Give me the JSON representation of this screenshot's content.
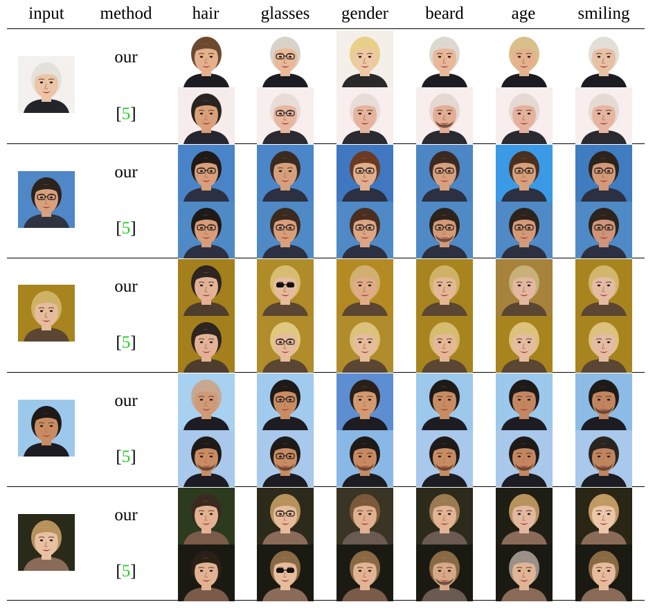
{
  "columns": [
    "input",
    "method",
    "hair",
    "glasses",
    "gender",
    "beard",
    "age",
    "smiling"
  ],
  "method_labels": {
    "ours": "our",
    "citation_number": "5"
  },
  "rows": [
    {
      "input": {
        "bg": "#f4f0ee",
        "skin": "#ecc4a6",
        "hair": "#e3e1dc",
        "shirt": "#23252b"
      },
      "our": [
        {
          "bg": "#ffffff",
          "skin": "#e6b08c",
          "hair": "#6b4a30",
          "shirt": "#1c1c22"
        },
        {
          "bg": "#ffffff",
          "skin": "#e9b998",
          "hair": "#d8d2c8",
          "shirt": "#1c1c22",
          "glasses": "clear"
        },
        {
          "bg": "#f4efe8",
          "skin": "#efc8a6",
          "hair": "#e8cf8a",
          "shirt": "#2a2a2a"
        },
        {
          "bg": "#ffffff",
          "skin": "#e8b898",
          "hair": "#ddd8d0",
          "shirt": "#1c1c22"
        },
        {
          "bg": "#ffffff",
          "skin": "#e5b28e",
          "hair": "#d9c08a",
          "shirt": "#1c1c22"
        },
        {
          "bg": "#ffffff",
          "skin": "#e8c0a4",
          "hair": "#e2ded8",
          "shirt": "#1c1c22"
        }
      ],
      "ref": [
        {
          "bg": "#f6eceb",
          "skin": "#d9a07a",
          "hair": "#2a2420",
          "shirt": "#26272e"
        },
        {
          "bg": "#f7eeed",
          "skin": "#e7b7a0",
          "hair": "#e8dcd8",
          "shirt": "#2a2a30",
          "glasses": "clear"
        },
        {
          "bg": "#f7eeed",
          "skin": "#e6b39c",
          "hair": "#e8dcd8",
          "shirt": "#2a2a30"
        },
        {
          "bg": "#f7eeed",
          "skin": "#e3ad94",
          "hair": "#e4d8d2",
          "shirt": "#2a2a30",
          "beard": true
        },
        {
          "bg": "#f7eeed",
          "skin": "#e4b29c",
          "hair": "#e5d9d3",
          "shirt": "#2a2a30"
        },
        {
          "bg": "#f7eeed",
          "skin": "#e5b5a0",
          "hair": "#e6dad4",
          "shirt": "#2a2a30"
        }
      ]
    },
    {
      "input": {
        "bg": "#4f87c7",
        "skin": "#d9a07e",
        "hair": "#2c231c",
        "shirt": "#303440",
        "glasses": "clear"
      },
      "our": [
        {
          "bg": "#4a84c8",
          "skin": "#d99e7a",
          "hair": "#1e1a18",
          "shirt": "#2c3040",
          "glasses": "clear"
        },
        {
          "bg": "#4a86c8",
          "skin": "#d6a07c",
          "hair": "#3a2a20",
          "shirt": "#2c3040"
        },
        {
          "bg": "#3f78c0",
          "skin": "#e1ae8e",
          "hair": "#6a3a22",
          "shirt": "#2c3040",
          "glasses": "clear"
        },
        {
          "bg": "#4c86c4",
          "skin": "#d9a07e",
          "hair": "#3a2a22",
          "shirt": "#2c3040",
          "glasses": "clear"
        },
        {
          "bg": "#3a9ae6",
          "skin": "#d7a07c",
          "hair": "#4a3020",
          "shirt": "#2c3040",
          "glasses": "clear"
        },
        {
          "bg": "#3f7cc0",
          "skin": "#d49a78",
          "hair": "#2c231c",
          "shirt": "#2c3040",
          "glasses": "clear"
        }
      ],
      "ref": [
        {
          "bg": "#4f8ac6",
          "skin": "#d99c78",
          "hair": "#1e1a18",
          "shirt": "#2c3040",
          "glasses": "clear"
        },
        {
          "bg": "#4f8ac6",
          "skin": "#d99e7a",
          "hair": "#3a2a20",
          "shirt": "#2c3040",
          "glasses": "clear"
        },
        {
          "bg": "#4f8ac6",
          "skin": "#dca584",
          "hair": "#4a2e20",
          "shirt": "#2c3040",
          "glasses": "clear"
        },
        {
          "bg": "#4f8ac6",
          "skin": "#d49a78",
          "hair": "#2c231c",
          "shirt": "#2c3040",
          "glasses": "clear",
          "beard": true
        },
        {
          "bg": "#4f8ac6",
          "skin": "#d49a78",
          "hair": "#2c231c",
          "shirt": "#2c3040",
          "glasses": "clear"
        },
        {
          "bg": "#4f8ac6",
          "skin": "#d09478",
          "hair": "#2c231c",
          "shirt": "#2c3040",
          "glasses": "clear"
        }
      ]
    },
    {
      "input": {
        "bg": "#a8841e",
        "skin": "#e6bc9c",
        "hair": "#cfb266",
        "shirt": "#5a4632"
      },
      "our": [
        {
          "bg": "#a3801c",
          "skin": "#e2b296",
          "hair": "#2e2420",
          "shirt": "#4e3c2c"
        },
        {
          "bg": "#b08c28",
          "skin": "#e6bc9c",
          "hair": "#d8bc72",
          "shirt": "#5a4632",
          "glasses": "dark"
        },
        {
          "bg": "#b48a22",
          "skin": "#e0ac88",
          "hair": "#cfb070",
          "shirt": "#5a4632"
        },
        {
          "bg": "#a8841e",
          "skin": "#e4b896",
          "hair": "#cfb266",
          "shirt": "#5a4632"
        },
        {
          "bg": "#a6823a",
          "skin": "#e2b8a0",
          "hair": "#c8b078",
          "shirt": "#5a4632"
        },
        {
          "bg": "#a8841e",
          "skin": "#e4bca4",
          "hair": "#d2b66c",
          "shirt": "#5a4632"
        }
      ],
      "ref": [
        {
          "bg": "#a3801c",
          "skin": "#e2b296",
          "hair": "#2e2420",
          "shirt": "#4e3c2c"
        },
        {
          "bg": "#b08c2a",
          "skin": "#e6bc9c",
          "hair": "#e0c880",
          "shirt": "#5a4632",
          "glasses": "clear"
        },
        {
          "bg": "#b08c2a",
          "skin": "#e6bc9c",
          "hair": "#dcc27c",
          "shirt": "#5a4632"
        },
        {
          "bg": "#a8841e",
          "skin": "#e4b896",
          "hair": "#d6bc70",
          "shirt": "#5a4632"
        },
        {
          "bg": "#a8841e",
          "skin": "#e6bca0",
          "hair": "#dcc27c",
          "shirt": "#5a4632"
        },
        {
          "bg": "#a8841e",
          "skin": "#e4bca4",
          "hair": "#dcc27c",
          "shirt": "#5a4632"
        }
      ]
    },
    {
      "input": {
        "bg": "#9cc8ec",
        "skin": "#c98c62",
        "hair": "#1e1a18",
        "shirt": "#1c1c22"
      },
      "our": [
        {
          "bg": "#a8d0f0",
          "skin": "#d09a76",
          "hair": "#c8a890",
          "shirt": "#1c1c22"
        },
        {
          "bg": "#a0cbee",
          "skin": "#c98c62",
          "hair": "#1e1a18",
          "shirt": "#1c1c22",
          "glasses": "clear"
        },
        {
          "bg": "#5e8ed2",
          "skin": "#d39a70",
          "hair": "#2a2018",
          "shirt": "#1c1c22"
        },
        {
          "bg": "#9cc8ec",
          "skin": "#c98c62",
          "hair": "#1e1a18",
          "shirt": "#1c1c22"
        },
        {
          "bg": "#9cc8ec",
          "skin": "#c48660",
          "hair": "#1e1a18",
          "shirt": "#1c1c22"
        },
        {
          "bg": "#8cbce6",
          "skin": "#c0845e",
          "hair": "#1e1a18",
          "shirt": "#1c1c22",
          "beard": true
        }
      ],
      "ref": [
        {
          "bg": "#a8c8ec",
          "skin": "#c98c62",
          "hair": "#1e1a18",
          "shirt": "#1c1c22",
          "beard": true
        },
        {
          "bg": "#a8c8ec",
          "skin": "#c98c62",
          "hair": "#1e1a18",
          "shirt": "#1c1c22",
          "glasses": "clear",
          "beard": true
        },
        {
          "bg": "#8ab8e6",
          "skin": "#c88a62",
          "hair": "#1e1a18",
          "shirt": "#1c1c22",
          "beard": true
        },
        {
          "bg": "#a8c8ec",
          "skin": "#c98c62",
          "hair": "#1e1a18",
          "shirt": "#1c1c22",
          "beard": true
        },
        {
          "bg": "#a8c8ec",
          "skin": "#c48660",
          "hair": "#1e1a18",
          "shirt": "#1c1c22",
          "beard": true
        },
        {
          "bg": "#a8c8ec",
          "skin": "#c0845e",
          "hair": "#2a2420",
          "shirt": "#1c1c22",
          "beard": true
        }
      ]
    },
    {
      "input": {
        "bg": "#2a2a1a",
        "skin": "#e8c0a2",
        "hair": "#b8925c",
        "shirt": "#8a6a58"
      },
      "our": [
        {
          "bg": "#2c3a1e",
          "skin": "#e2b292",
          "hair": "#3a2a20",
          "shirt": "#7a5a48"
        },
        {
          "bg": "#2c2a1a",
          "skin": "#e6bc9c",
          "hair": "#b8925c",
          "shirt": "#8a6a58",
          "glasses": "clear"
        },
        {
          "bg": "#3a3424",
          "skin": "#e0b090",
          "hair": "#7a5a3a",
          "shirt": "#6a5a52"
        },
        {
          "bg": "#2c2a1a",
          "skin": "#e2b494",
          "hair": "#9a7a52",
          "shirt": "#6a5a52"
        },
        {
          "bg": "#1e1e14",
          "skin": "#e2b8a0",
          "hair": "#b8925c",
          "shirt": "#8a6a58"
        },
        {
          "bg": "#2a2616",
          "skin": "#ecc6a8",
          "hair": "#c09a62",
          "shirt": "#8a6a58"
        }
      ],
      "ref": [
        {
          "bg": "#1a1a12",
          "skin": "#e2b292",
          "hair": "#2a2018",
          "shirt": "#7a5a48"
        },
        {
          "bg": "#1a1a12",
          "skin": "#e6bc9c",
          "hair": "#8a6a44",
          "shirt": "#8a6a58",
          "glasses": "dark"
        },
        {
          "bg": "#1a1a12",
          "skin": "#e2b494",
          "hair": "#8a6a44",
          "shirt": "#7a5a48"
        },
        {
          "bg": "#1a1a12",
          "skin": "#d8a888",
          "hair": "#8a6a44",
          "shirt": "#6a5a52",
          "beard": true
        },
        {
          "bg": "#1a1a12",
          "skin": "#e0b494",
          "hair": "#9a9088",
          "shirt": "#8a6a58"
        },
        {
          "bg": "#1a1a12",
          "skin": "#e6bc9c",
          "hair": "#8a6a44",
          "shirt": "#8a6a58"
        }
      ]
    }
  ]
}
